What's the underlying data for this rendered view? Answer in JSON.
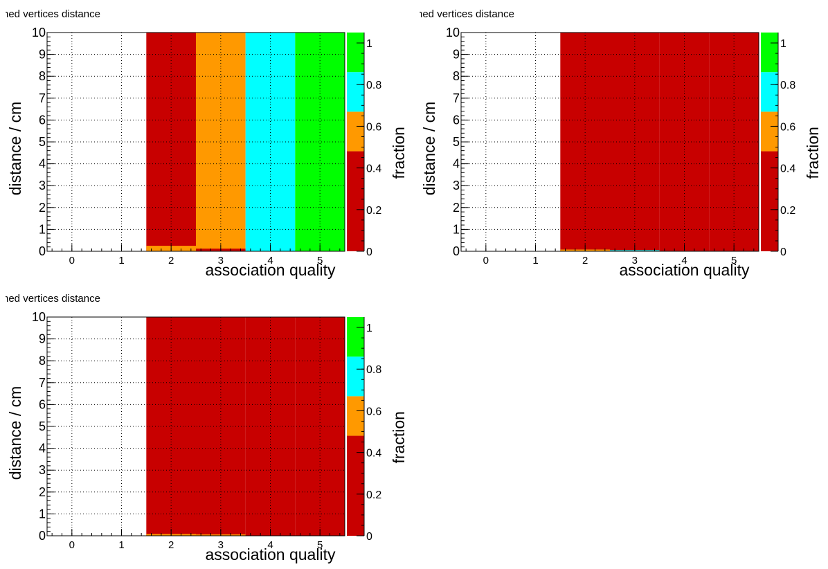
{
  "chart_data": [
    {
      "type": "heatmap",
      "title": "ned vertices distance",
      "xlabel": "association quality",
      "ylabel": "distance / cm",
      "zlabel": "fraction",
      "xlim": [
        -0.5,
        5.5
      ],
      "ylim": [
        0,
        10
      ],
      "zlim": [
        0,
        1.05
      ],
      "x_ticks": [
        "0",
        "1",
        "2",
        "3",
        "4",
        "5"
      ],
      "y_ticks": [
        "0",
        "1",
        "2",
        "3",
        "4",
        "5",
        "6",
        "7",
        "8",
        "9",
        "10"
      ],
      "z_ticks": [
        "0",
        "0.2",
        "0.4",
        "0.6",
        "0.8",
        "1"
      ],
      "palette": [
        "#c80000",
        "#ff9900",
        "#00ffff",
        "#00ff00"
      ],
      "palette_bounds": [
        0,
        0.48,
        0.67,
        0.86,
        1.05
      ],
      "grid": true,
      "columns": [
        {
          "x": 2,
          "fraction": 0.3,
          "bottom_strip": {
            "ymax": 0.25,
            "fraction": 0.55
          }
        },
        {
          "x": 3,
          "fraction": 0.6,
          "bottom_strip": {
            "ymax": 0.12,
            "fraction": 0.3
          }
        },
        {
          "x": 4,
          "fraction": 0.8
        },
        {
          "x": 5,
          "fraction": 1.0
        }
      ]
    },
    {
      "type": "heatmap",
      "title": "ned vertices distance",
      "xlabel": "association quality",
      "ylabel": "distance / cm",
      "zlabel": "fraction",
      "xlim": [
        -0.5,
        5.5
      ],
      "ylim": [
        0,
        10
      ],
      "zlim": [
        0,
        1.05
      ],
      "x_ticks": [
        "0",
        "1",
        "2",
        "3",
        "4",
        "5"
      ],
      "y_ticks": [
        "0",
        "1",
        "2",
        "3",
        "4",
        "5",
        "6",
        "7",
        "8",
        "9",
        "10"
      ],
      "z_ticks": [
        "0",
        "0.2",
        "0.4",
        "0.6",
        "0.8",
        "1"
      ],
      "palette": [
        "#c80000",
        "#ff9900",
        "#00ffff",
        "#00ff00"
      ],
      "palette_bounds": [
        0,
        0.48,
        0.67,
        0.86,
        1.05
      ],
      "grid": true,
      "columns": [
        {
          "x": 2,
          "fraction": 0.2,
          "bottom_strip": {
            "ymax": 0.08,
            "fraction": 0.55
          }
        },
        {
          "x": 3,
          "fraction": 0.2,
          "bottom_strip": {
            "ymax": 0.05,
            "fraction": 0.75
          }
        },
        {
          "x": 4,
          "fraction": 0.2
        },
        {
          "x": 5,
          "fraction": 0.2
        }
      ]
    },
    {
      "type": "heatmap",
      "title": "ned vertices distance",
      "xlabel": "association quality",
      "ylabel": "distance / cm",
      "zlabel": "fraction",
      "xlim": [
        -0.5,
        5.5
      ],
      "ylim": [
        0,
        10
      ],
      "zlim": [
        0,
        1.05
      ],
      "x_ticks": [
        "0",
        "1",
        "2",
        "3",
        "4",
        "5"
      ],
      "y_ticks": [
        "0",
        "1",
        "2",
        "3",
        "4",
        "5",
        "6",
        "7",
        "8",
        "9",
        "10"
      ],
      "z_ticks": [
        "0",
        "0.2",
        "0.4",
        "0.6",
        "0.8",
        "1"
      ],
      "palette": [
        "#c80000",
        "#ff9900",
        "#00ffff",
        "#00ff00"
      ],
      "palette_bounds": [
        0,
        0.48,
        0.67,
        0.86,
        1.05
      ],
      "grid": true,
      "columns": [
        {
          "x": 2,
          "fraction": 0.2,
          "bottom_strip": {
            "ymax": 0.08,
            "fraction": 0.55
          }
        },
        {
          "x": 3,
          "fraction": 0.2,
          "bottom_strip": {
            "ymax": 0.06,
            "fraction": 0.55
          }
        },
        {
          "x": 4,
          "fraction": 0.2
        },
        {
          "x": 5,
          "fraction": 0.2
        }
      ]
    }
  ]
}
